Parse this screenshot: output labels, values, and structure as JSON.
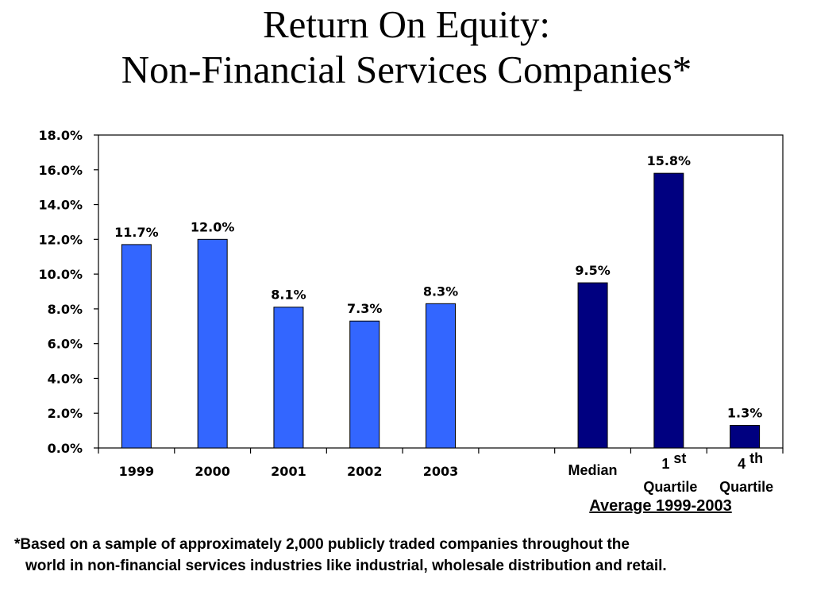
{
  "title_line1": "Return On Equity:",
  "title_line2": "Non-Financial Services Companies*",
  "group_caption": "Average 1999-2003",
  "footnote_line1": "*Based on a sample of approximately 2,000 publicly traded companies throughout the",
  "footnote_line2": "world in non-financial services industries like industrial, wholesale distribution and retail.",
  "colors": {
    "year_bar": "#3366FF",
    "summary_bar": "#000080",
    "axis": "#000000",
    "background": "#ffffff"
  },
  "chart_data": {
    "type": "bar",
    "title": "Return On Equity: Non-Financial Services Companies*",
    "ylim": [
      0,
      18
    ],
    "y_unit": "%",
    "y_ticks": [
      "0.0%",
      "2.0%",
      "4.0%",
      "6.0%",
      "8.0%",
      "10.0%",
      "12.0%",
      "14.0%",
      "16.0%",
      "18.0%"
    ],
    "grid": false,
    "categories": [
      {
        "lines": [
          "1999"
        ],
        "sup": "",
        "value": 11.7,
        "label": "11.7%",
        "group": "year"
      },
      {
        "lines": [
          "2000"
        ],
        "sup": "",
        "value": 12.0,
        "label": "12.0%",
        "group": "year"
      },
      {
        "lines": [
          "2001"
        ],
        "sup": "",
        "value": 8.1,
        "label": "8.1%",
        "group": "year"
      },
      {
        "lines": [
          "2002"
        ],
        "sup": "",
        "value": 7.3,
        "label": "7.3%",
        "group": "year"
      },
      {
        "lines": [
          "2003"
        ],
        "sup": "",
        "value": 8.3,
        "label": "8.3%",
        "group": "year"
      },
      {
        "lines": [
          ""
        ],
        "sup": "",
        "value": null,
        "label": "",
        "group": "gap"
      },
      {
        "lines": [
          "Median"
        ],
        "sup": "",
        "value": 9.5,
        "label": "9.5%",
        "group": "summary"
      },
      {
        "lines": [
          "1",
          "Quartile"
        ],
        "sup": "st",
        "value": 15.8,
        "label": "15.8%",
        "group": "summary"
      },
      {
        "lines": [
          "4",
          "Quartile"
        ],
        "sup": "th",
        "value": 1.3,
        "label": "1.3%",
        "group": "summary"
      }
    ]
  }
}
